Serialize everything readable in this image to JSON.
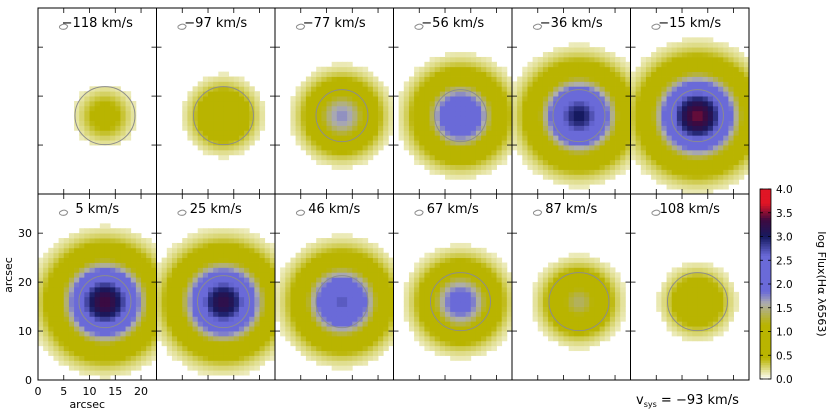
{
  "chart_data": {
    "type": "heatmap",
    "panels": [
      {
        "label": "−118 km/s",
        "velocity": -118,
        "peak_log_flux": 0.55,
        "contour": "large"
      },
      {
        "label": "−97 km/s",
        "velocity": -97,
        "peak_log_flux": 1.0,
        "contour": "large"
      },
      {
        "label": "−77 km/s",
        "velocity": -77,
        "peak_log_flux": 1.6,
        "contour": "mid"
      },
      {
        "label": "−56 km/s",
        "velocity": -56,
        "peak_log_flux": 2.3,
        "contour": "mid"
      },
      {
        "label": "−36 km/s",
        "velocity": -36,
        "peak_log_flux": 2.8,
        "contour": "mid"
      },
      {
        "label": "−15 km/s",
        "velocity": -15,
        "peak_log_flux": 3.2,
        "contour": "mid"
      },
      {
        "label": "5 km/s",
        "velocity": 5,
        "peak_log_flux": 3.1,
        "contour": "mid"
      },
      {
        "label": "25 km/s",
        "velocity": 25,
        "peak_log_flux": 3.0,
        "contour": "mid"
      },
      {
        "label": "46 km/s",
        "velocity": 46,
        "peak_log_flux": 2.5,
        "contour": "mid"
      },
      {
        "label": "67 km/s",
        "velocity": 67,
        "peak_log_flux": 1.9,
        "contour": "large"
      },
      {
        "label": "87 km/s",
        "velocity": 87,
        "peak_log_flux": 1.3,
        "contour": "large"
      },
      {
        "label": "108 km/s",
        "velocity": 108,
        "peak_log_flux": 0.9,
        "contour": "large"
      }
    ],
    "x_axis": {
      "label": "arcsec",
      "ticks": [
        "0",
        "5",
        "10",
        "15",
        "20"
      ],
      "range": [
        0,
        23
      ]
    },
    "y_axis": {
      "label": "arcsec",
      "ticks": [
        "0",
        "10",
        "20",
        "30"
      ],
      "range": [
        0,
        38
      ]
    },
    "colorbar": {
      "label": "log Flux(Hα λ6563)",
      "ticks": [
        "0.0",
        "0.5",
        "1.0",
        "1.5",
        "2.0",
        "2.5",
        "3.0",
        "3.5",
        "4.0"
      ],
      "range": [
        0,
        4
      ]
    },
    "source_center_arcsec": [
      13,
      16
    ],
    "footer": "v_sys = −93 km/s",
    "footer_parts": {
      "v": "v",
      "sub": "sys",
      "rest": " = −93 km/s"
    },
    "colors": {
      "low": "#ffffff",
      "olive": "#b9b400",
      "gray_band": "#aeaeae",
      "blue": "#6a6ad8",
      "navy": "#161a60",
      "dark_purple": "#3d0a40",
      "red": "#e01525",
      "contour": "#8c8c8c"
    }
  }
}
